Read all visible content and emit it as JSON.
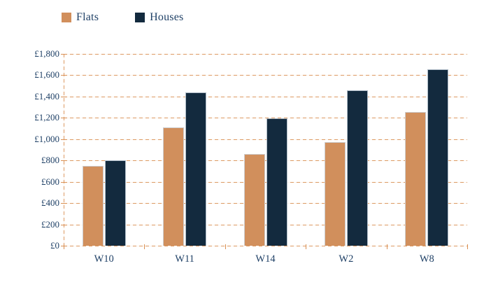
{
  "colors": {
    "flats": "#d18f5c",
    "houses": "#132a3e",
    "axis_text": "#1f4066",
    "gridline": "#dd9a63",
    "background": "#ffffff"
  },
  "legend": {
    "position": "top-left",
    "items": [
      {
        "label": "Flats",
        "color": "#d18f5c"
      },
      {
        "label": "Houses",
        "color": "#132a3e"
      }
    ]
  },
  "chart_data": {
    "type": "bar",
    "title": "",
    "categories": [
      "W10",
      "W11",
      "W14",
      "W2",
      "W8"
    ],
    "series": [
      {
        "name": "Flats",
        "color": "#d18f5c",
        "values": [
          750,
          1110,
          860,
          975,
          1255
        ]
      },
      {
        "name": "Houses",
        "color": "#132a3e",
        "values": [
          800,
          1440,
          1195,
          1460,
          1655
        ]
      }
    ],
    "xlabel": "",
    "ylabel": "",
    "ylim": [
      0,
      1800
    ],
    "ytick_step": 200,
    "ytick_labels": [
      "£0",
      "£200",
      "£400",
      "£600",
      "£800",
      "£1,000",
      "£1,200",
      "£1,400",
      "£1,600",
      "£1,800"
    ],
    "currency": "£",
    "grid": "dashed-horizontal-orange",
    "legend_position": "top-left"
  }
}
